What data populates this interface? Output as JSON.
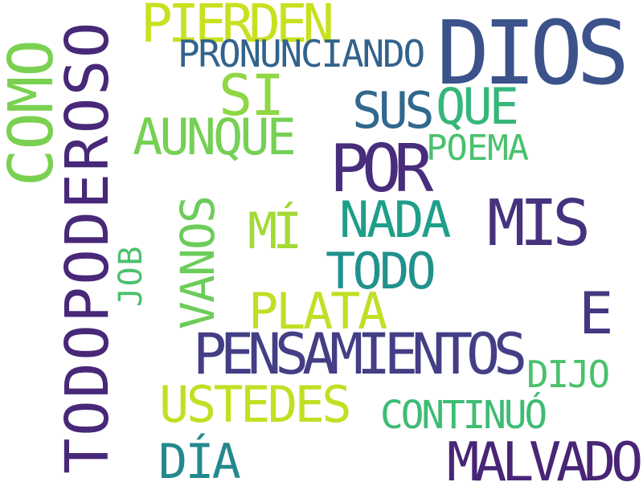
{
  "words": [
    {
      "text": "TODOPODEROSO",
      "color": "#482878"
    },
    {
      "text": "DIOS",
      "color": "#3b528b"
    },
    {
      "text": "COMO",
      "color": "#7ad151"
    },
    {
      "text": "POR",
      "color": "#472d7b"
    },
    {
      "text": "MIS",
      "color": "#46327e"
    },
    {
      "text": "PENSAMIENTOS",
      "color": "#433e85"
    },
    {
      "text": "MALVADO",
      "color": "#482576"
    },
    {
      "text": "E",
      "color": "#453781"
    },
    {
      "text": "SI",
      "color": "#8fd744"
    },
    {
      "text": "PIERDEN",
      "color": "#c8e020"
    },
    {
      "text": "AUNQUE",
      "color": "#75d054"
    },
    {
      "text": "SUS",
      "color": "#31688e"
    },
    {
      "text": "QUE",
      "color": "#35b779"
    },
    {
      "text": "NADA",
      "color": "#1f9e89"
    },
    {
      "text": "TODO",
      "color": "#21918c"
    },
    {
      "text": "VANOS",
      "color": "#6ccd5a"
    },
    {
      "text": "MÍ",
      "color": "#a2da37"
    },
    {
      "text": "PLATA",
      "color": "#c0df25"
    },
    {
      "text": "USTEDES",
      "color": "#c2df23"
    },
    {
      "text": "DÍA",
      "color": "#23898e"
    },
    {
      "text": "CONTINUÓ",
      "color": "#3dbc74"
    },
    {
      "text": "DIJO",
      "color": "#4ac16d"
    },
    {
      "text": "POEMA",
      "color": "#4ac16d"
    },
    {
      "text": "PRONUNCIANDO",
      "color": "#33638d"
    },
    {
      "text": "JOB",
      "color": "#4ac16d"
    }
  ]
}
